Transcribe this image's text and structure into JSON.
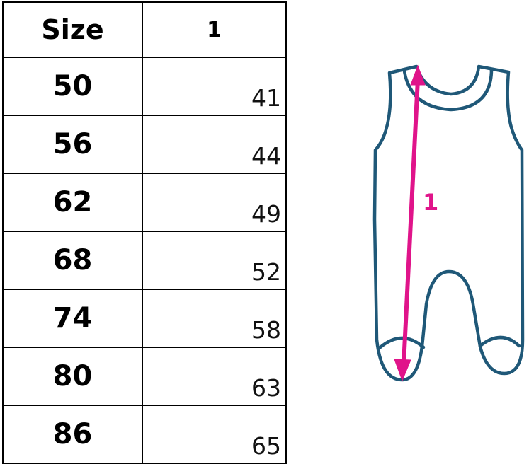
{
  "table": {
    "headers": [
      "Size",
      "1"
    ],
    "rows": [
      {
        "size": "50",
        "value": "41"
      },
      {
        "size": "56",
        "value": "44"
      },
      {
        "size": "62",
        "value": "49"
      },
      {
        "size": "68",
        "value": "52"
      },
      {
        "size": "74",
        "value": "58"
      },
      {
        "size": "80",
        "value": "63"
      },
      {
        "size": "86",
        "value": "65"
      }
    ]
  },
  "diagram": {
    "measurement_label": "1",
    "outline_color": "#1f5878",
    "arrow_color": "#e0148a"
  }
}
